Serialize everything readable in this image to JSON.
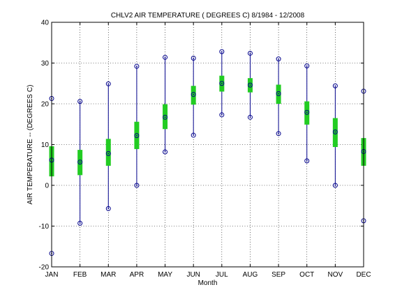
{
  "chart_data": {
    "type": "box-range",
    "title": "CHLV2  AIR TEMPERATURE ( DEGREES C) 8/1984 - 12/2008",
    "xlabel": "Month",
    "ylabel": "AIR TEMPERATURE -- (DEGREES C)",
    "ylim": [
      -20,
      40
    ],
    "yticks": [
      -20,
      -10,
      0,
      10,
      20,
      30,
      40
    ],
    "grid": true,
    "categories": [
      "JAN",
      "FEB",
      "MAR",
      "APR",
      "MAY",
      "JUN",
      "JUL",
      "AUG",
      "SEP",
      "OCT",
      "NOV",
      "DEC"
    ],
    "min": [
      -16.7,
      -9.3,
      -5.7,
      0.0,
      8.2,
      12.3,
      17.3,
      16.7,
      12.7,
      6.0,
      0.0,
      -8.7
    ],
    "max": [
      21.3,
      20.6,
      24.9,
      29.2,
      31.4,
      31.2,
      32.8,
      32.4,
      31.0,
      29.3,
      24.4,
      23.1
    ],
    "mean": [
      6.2,
      5.7,
      7.8,
      12.2,
      16.7,
      22.3,
      25.0,
      24.6,
      22.5,
      17.9,
      13.1,
      8.3
    ],
    "box_low": [
      2.2,
      2.5,
      4.8,
      8.9,
      13.8,
      19.8,
      23.0,
      22.8,
      20.0,
      14.9,
      9.4,
      4.8
    ],
    "box_high": [
      9.6,
      8.7,
      11.4,
      15.6,
      19.9,
      24.4,
      26.9,
      26.3,
      24.7,
      20.6,
      16.5,
      11.6
    ],
    "colors": {
      "range_line": "#00008b",
      "box": "#22cc22",
      "marker": "#00008b",
      "grid": "#000000"
    }
  }
}
